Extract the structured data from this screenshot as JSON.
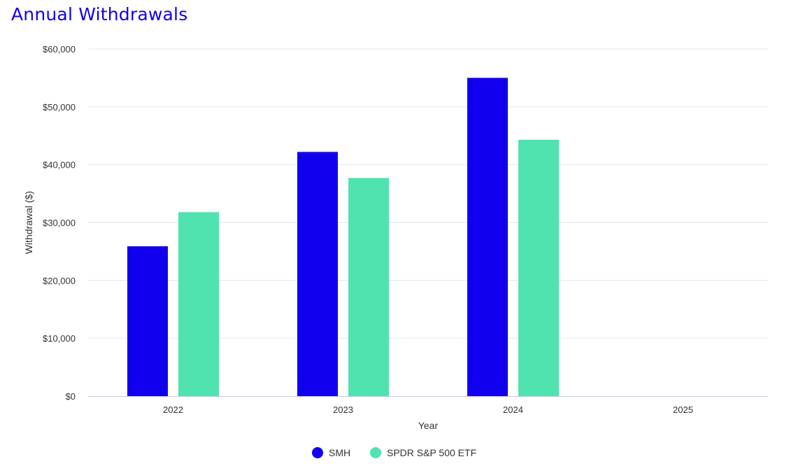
{
  "chart_data": {
    "type": "bar",
    "title": "Annual Withdrawals",
    "xlabel": "Year",
    "ylabel": "Withdrawal ($)",
    "categories": [
      "2022",
      "2023",
      "2024",
      "2025"
    ],
    "series": [
      {
        "name": "SMH",
        "color": "#1100ee",
        "values": [
          25900,
          42200,
          55000,
          0
        ]
      },
      {
        "name": "SPDR S&P 500 ETF",
        "color": "#50e3b0",
        "values": [
          31800,
          37700,
          44300,
          0
        ]
      }
    ],
    "ylim": [
      0,
      60000
    ],
    "yticks": [
      0,
      10000,
      20000,
      30000,
      40000,
      50000,
      60000
    ],
    "ytick_labels": [
      "$0",
      "$10,000",
      "$20,000",
      "$30,000",
      "$40,000",
      "$50,000",
      "$60,000"
    ],
    "grid": true,
    "legend_position": "bottom-center"
  }
}
